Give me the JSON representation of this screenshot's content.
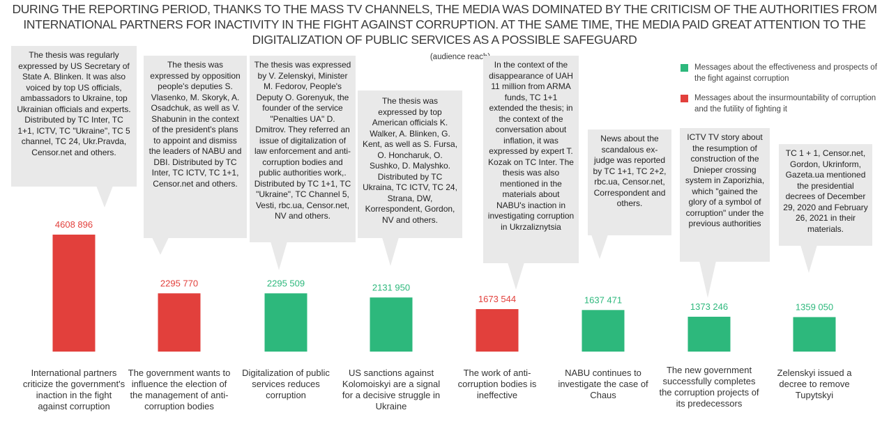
{
  "title": "DURING THE REPORTING PERIOD, THANKS TO THE MASS TV CHANNELS, THE MEDIA WAS DOMINATED BY THE CRITICISM OF THE AUTHORITIES FROM INTERNATIONAL PARTNERS FOR INACTIVITY IN THE FIGHT AGAINST CORRUPTION. AT THE SAME TIME, THE MEDIA PAID GREAT ATTENTION TO THE DIGITALIZATION OF PUBLIC SERVICES AS A POSSIBLE SAFEGUARD",
  "subtitle": "(audience reach)",
  "legend": [
    {
      "label": "Messages about the effectiveness and prospects of the fight against corruption",
      "color": "#2db87c"
    },
    {
      "label": "Messages about the insurmountability of corruption and the futility of fighting it",
      "color": "#e2403c"
    }
  ],
  "chart_data": {
    "type": "bar",
    "categories": [
      "International partners criticize the government's inaction in the fight against corruption",
      "The government wants to influence the election of the management of anti-corruption bodies",
      "Digitalization of public services reduces corruption",
      "US sanctions against Kolomoiskyi are a signal for a decisive struggle in Ukraine",
      "The work of anti-corruption bodies is ineffective",
      "NABU continues to investigate the case of Chaus",
      "The new government successfully completes the corruption projects of its predecessors",
      "Zelenskyi issued a decree to remove Tupytskyi"
    ],
    "values": [
      4608896,
      2295770,
      2295509,
      2131950,
      1673544,
      1637471,
      1373246,
      1359050
    ],
    "value_labels": [
      "4608 896",
      "2295 770",
      "2295 509",
      "2131 950",
      "1673 544",
      "1637 471",
      "1373 246",
      "1359 050"
    ],
    "colors": [
      "#e2403c",
      "#e2403c",
      "#2db87c",
      "#2db87c",
      "#e2403c",
      "#2db87c",
      "#2db87c",
      "#2db87c"
    ],
    "ylim": [
      0,
      4608896
    ],
    "grid": false,
    "legend_position": "top-right",
    "annotations": [
      "The thesis was regularly expressed by US Secretary of State A. Blinken. It was also voiced by top US officials, ambassadors to Ukraine, top Ukrainian officials and experts. Distributed by TC Inter, TC 1+1, ICTV, TC \"Ukraine\", TC 5 channel, TC 24, Ukr.Pravda, Censor.net  and others.",
      "The thesis was expressed by opposition people's deputies S. Vlasenko, M. Skoryk,  A. Osadchuk, as well as V. Shabunin in the context of the president's plans to appoint and dismiss the leaders of NABU and DBI. Distributed by TC Inter, TC ICTV, TC 1+1, Censor.net and others.",
      "The thesis was expressed by V. Zelenskyi, Minister M. Fedorov, People's Deputy O. Gorenyuk, the founder of the service \"Penalties UA\" D. Dmitrov. They referred  an issue of digitalization of law enforcement  and anti-corruption bodies and public authorities work,. Distributed by TC 1+1, TC \"Ukraine\", TC Channel 5, Vesti, rbc.ua, Censor.net, NV and others.",
      "The thesis was expressed by top American officials K. Walker, A. Blinken, G. Kent, as well as S. Fursa, O. Honcharuk, O. Sushko, D. Malyshko. Distributed by TC Ukraina, TC ICTV, TC 24, Strana, DW, Korrespondent, Gordon, NV and others.",
      "In the context of the disappearance of UAH 11 million from ARMA funds, TC 1+1 extended the thesis;  in the context of the conversation about inflation, it was expressed by expert  T. Kozak on TC Inter. The thesis was also mentioned in the materials about NABU's inaction in investigating corruption in Ukrzaliznytsia",
      "News about the scandalous ex-judge was reported by TC 1+1, TC 2+2, rbc.ua, Censor.net, Correspondent and others.",
      "ICTV TV story about the resumption  of construction of the Dnieper crossing system in Zaporizhia, which \"gained the glory of a symbol of corruption\" under the previous authorities",
      "TC 1 + 1, Censor.net, Gordon, Ukrinform, Gazeta.ua mentioned the presidential decrees  of December 29, 2020 and February 26, 2021 in their materials."
    ]
  }
}
